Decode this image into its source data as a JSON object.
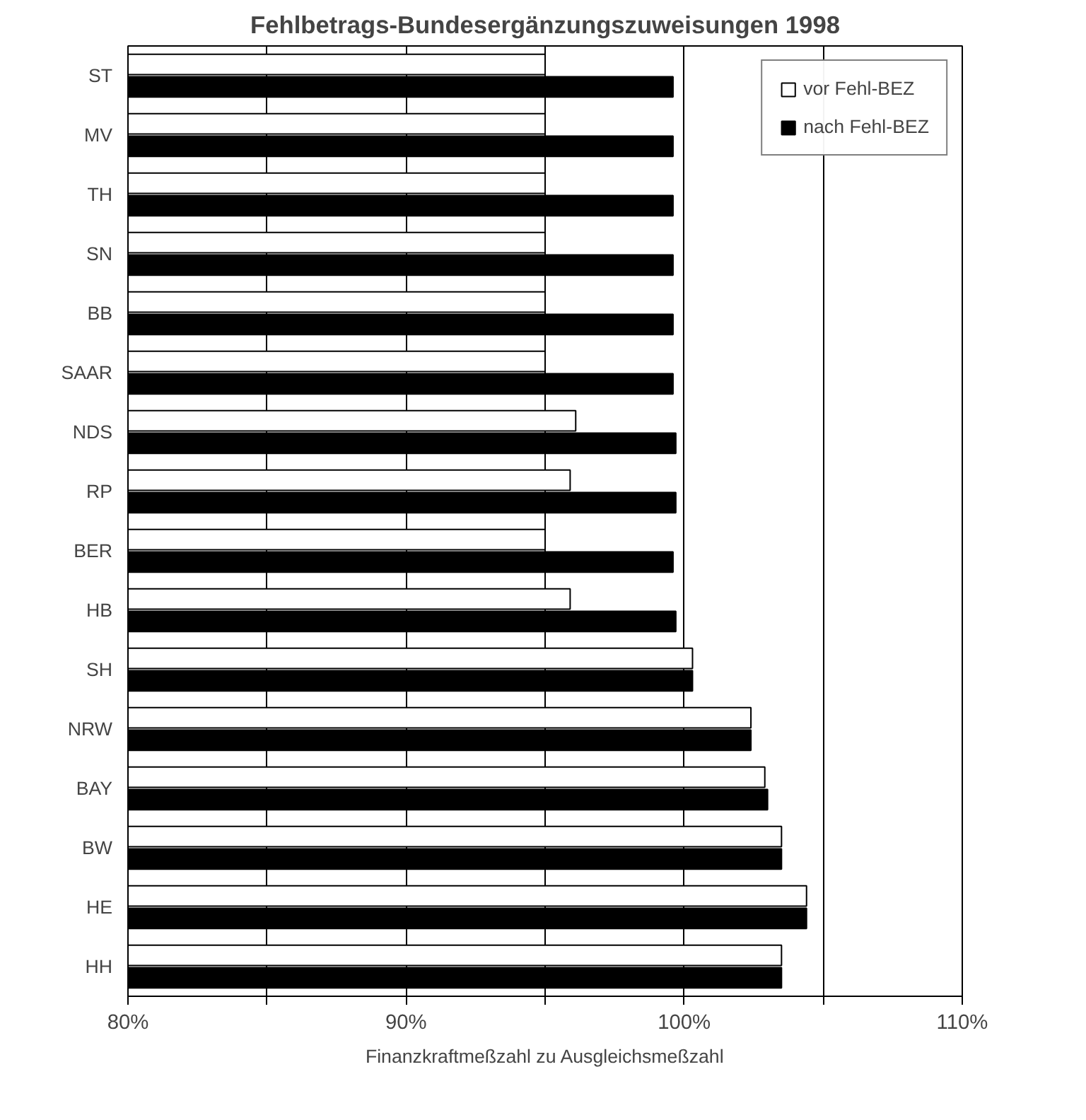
{
  "chart_data": {
    "type": "bar",
    "orientation": "horizontal",
    "title": "Fehlbetrags-Bundesergänzungszuweisungen 1998",
    "xlabel": "Finanzkraftmeßzahl zu Ausgleichsmeßzahl",
    "categories": [
      "ST",
      "MV",
      "TH",
      "SN",
      "BB",
      "SAAR",
      "NDS",
      "RP",
      "BER",
      "HB",
      "SH",
      "NRW",
      "BAY",
      "BW",
      "HE",
      "HH"
    ],
    "series": [
      {
        "name": "vor Fehl-BEZ",
        "color": "#ffffff",
        "values": [
          95.0,
          95.0,
          95.0,
          95.0,
          95.0,
          95.0,
          96.1,
          95.9,
          95.0,
          95.9,
          100.3,
          102.4,
          102.9,
          103.5,
          104.4,
          103.5
        ]
      },
      {
        "name": "nach Fehl-BEZ",
        "color": "#000000",
        "values": [
          99.6,
          99.6,
          99.6,
          99.6,
          99.6,
          99.6,
          99.7,
          99.7,
          99.6,
          99.7,
          100.3,
          102.4,
          103.0,
          103.5,
          104.4,
          103.5
        ]
      }
    ],
    "xlim": [
      80,
      110
    ],
    "xticks": [
      {
        "value": 80,
        "label": "80%"
      },
      {
        "value": 85,
        "label": null
      },
      {
        "value": 90,
        "label": "90%"
      },
      {
        "value": 95,
        "label": null
      },
      {
        "value": 100,
        "label": "100%"
      },
      {
        "value": 105,
        "label": null
      },
      {
        "value": 110,
        "label": "110%"
      }
    ],
    "grid": "x",
    "legend": "top right"
  }
}
